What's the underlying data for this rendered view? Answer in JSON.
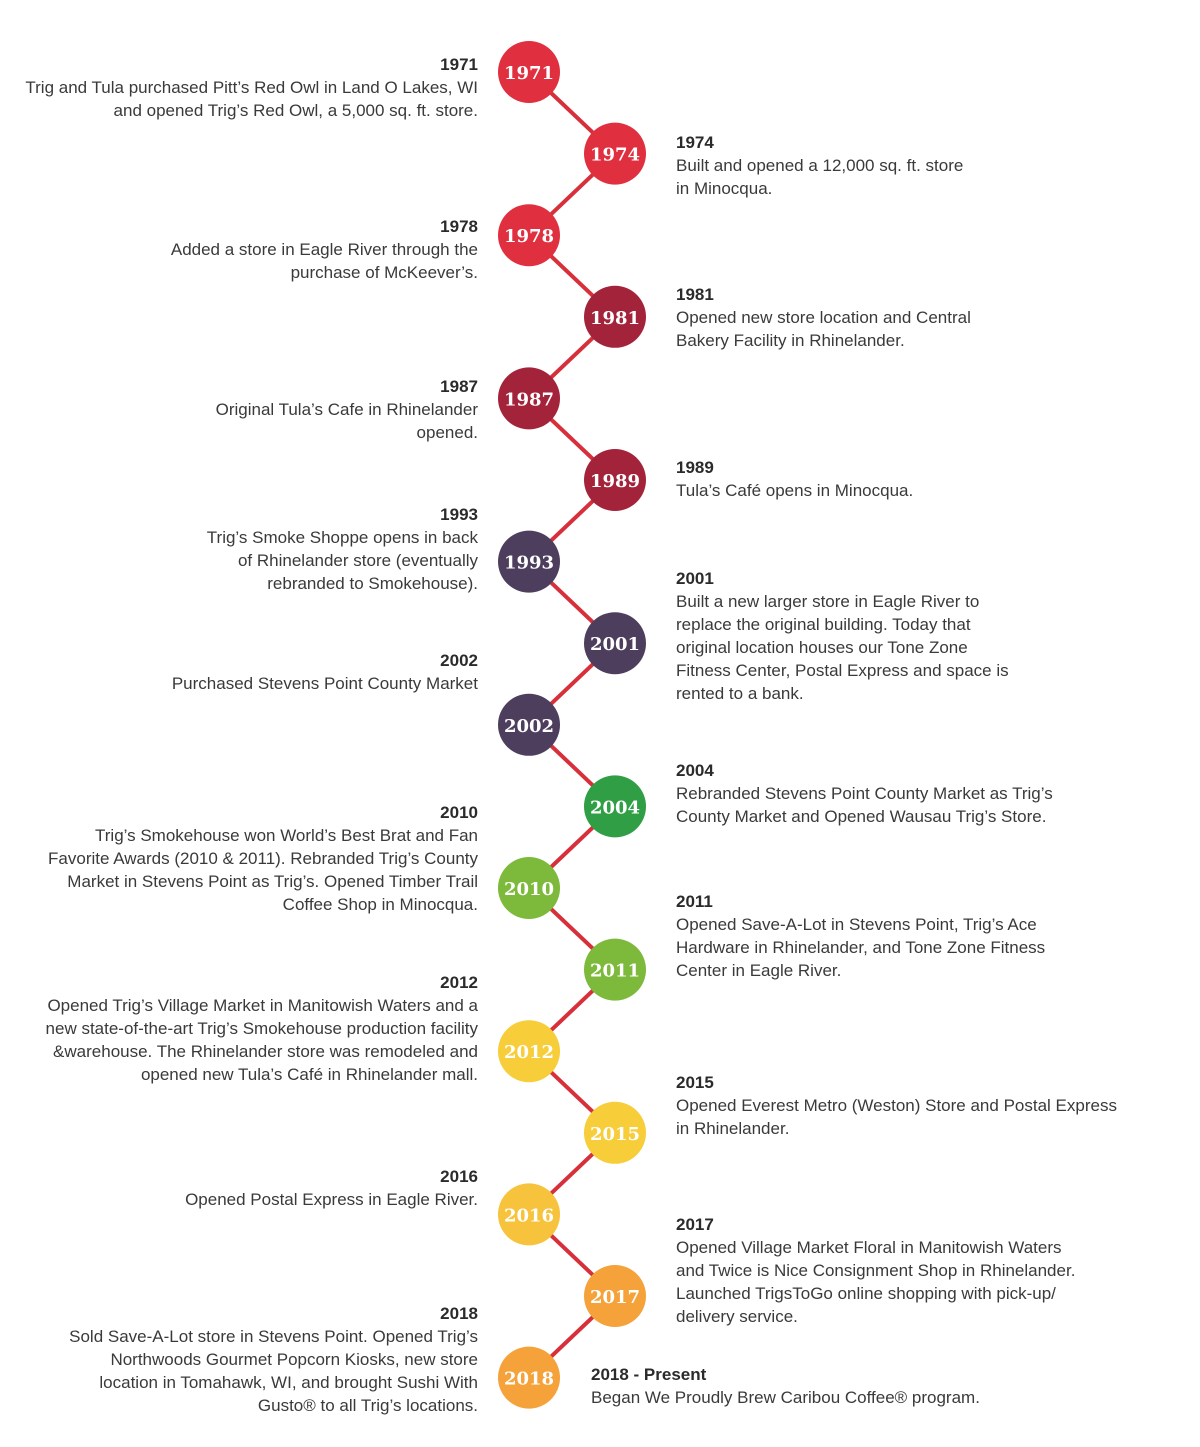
{
  "colors": {
    "connector": "#d7303b",
    "text": "#3a3a3a"
  },
  "events": [
    {
      "year": "1971",
      "node_label": "1971",
      "color": "#e0303f",
      "side": "left",
      "text": "Trig and Tula purchased Pitt’s Red Owl in Land O Lakes, WI\nand opened Trig’s Red Owl, a 5,000 sq. ft. store."
    },
    {
      "year": "1974",
      "node_label": "1974",
      "color": "#e0303f",
      "side": "right",
      "text": "Built and opened a 12,000 sq. ft. store\nin Minocqua."
    },
    {
      "year": "1978",
      "node_label": "1978",
      "color": "#e0303f",
      "side": "left",
      "text": "Added a store in Eagle River through the\npurchase of McKeever’s."
    },
    {
      "year": "1981",
      "node_label": "1981",
      "color": "#a3243a",
      "side": "right",
      "text": "Opened new store location and Central\nBakery Facility in Rhinelander."
    },
    {
      "year": "1987",
      "node_label": "1987",
      "color": "#a3243a",
      "side": "left",
      "text": "Original Tula’s Cafe in Rhinelander\nopened."
    },
    {
      "year": "1989",
      "node_label": "1989",
      "color": "#a3243a",
      "side": "right",
      "text": "Tula’s Café opens in Minocqua."
    },
    {
      "year": "1993",
      "node_label": "1993",
      "color": "#4e3e5e",
      "side": "left",
      "text": "Trig’s Smoke Shoppe opens in back\nof Rhinelander store (eventually\nrebranded to Smokehouse)."
    },
    {
      "year": "2001",
      "node_label": "2001",
      "color": "#4e3e5e",
      "side": "right",
      "text": "Built a new larger store in Eagle River to\nreplace the original building. Today that\noriginal location houses our Tone Zone\nFitness Center, Postal Express and space is\nrented to a bank."
    },
    {
      "year": "2002",
      "node_label": "2002",
      "color": "#4e3e5e",
      "side": "left",
      "text": "Purchased Stevens Point County Market"
    },
    {
      "year": "2004",
      "node_label": "2004",
      "color": "#2f9e44",
      "side": "right",
      "text": "Rebranded Stevens Point County Market as Trig’s\nCounty Market and Opened Wausau Trig’s Store."
    },
    {
      "year": "2010",
      "node_label": "2010",
      "color": "#7dba3c",
      "side": "left",
      "text": "Trig’s Smokehouse won World’s Best Brat and Fan\nFavorite Awards (2010 & 2011). Rebranded Trig’s County\nMarket in Stevens Point as Trig’s. Opened Timber Trail\nCoffee Shop in Minocqua."
    },
    {
      "year": "2011",
      "node_label": "2011",
      "color": "#7dba3c",
      "side": "right",
      "text": "Opened Save-A-Lot in Stevens Point, Trig’s Ace\nHardware in Rhinelander, and Tone Zone Fitness\nCenter in Eagle River."
    },
    {
      "year": "2012",
      "node_label": "2012",
      "color": "#f7cd3a",
      "side": "left",
      "text": "Opened Trig’s Village Market in Manitowish Waters and a\nnew state-of-the-art Trig’s Smokehouse production facility\n&warehouse.  The Rhinelander store was remodeled and\nopened new Tula’s Café in Rhinelander mall."
    },
    {
      "year": "2015",
      "node_label": "2015",
      "color": "#f7cd3a",
      "side": "right",
      "text": "Opened Everest Metro (Weston) Store and Postal Express\nin Rhinelander."
    },
    {
      "year": "2016",
      "node_label": "2016",
      "color": "#f8c33c",
      "side": "left",
      "text": "Opened Postal Express in Eagle River."
    },
    {
      "year": "2017",
      "node_label": "2017",
      "color": "#f5a23a",
      "side": "right",
      "text": "Opened Village Market Floral in Manitowish Waters\nand Twice is Nice Consignment Shop in Rhinelander.\nLaunched TrigsToGo online shopping with pick-up/\ndelivery service."
    },
    {
      "year": "2018",
      "node_label": "2018",
      "color": "#f5a23a",
      "side": "left",
      "text": "Sold Save-A-Lot store in Stevens Point. Opened Trig’s\nNorthwoods Gourmet Popcorn Kiosks, new store\nlocation in Tomahawk, WI, and brought Sushi With\nGusto® to all Trig’s locations."
    },
    {
      "year": "2018 - Present",
      "node_label": "",
      "color": "",
      "side": "right",
      "text": "Began We Proudly Brew Caribou Coffee® program."
    }
  ]
}
